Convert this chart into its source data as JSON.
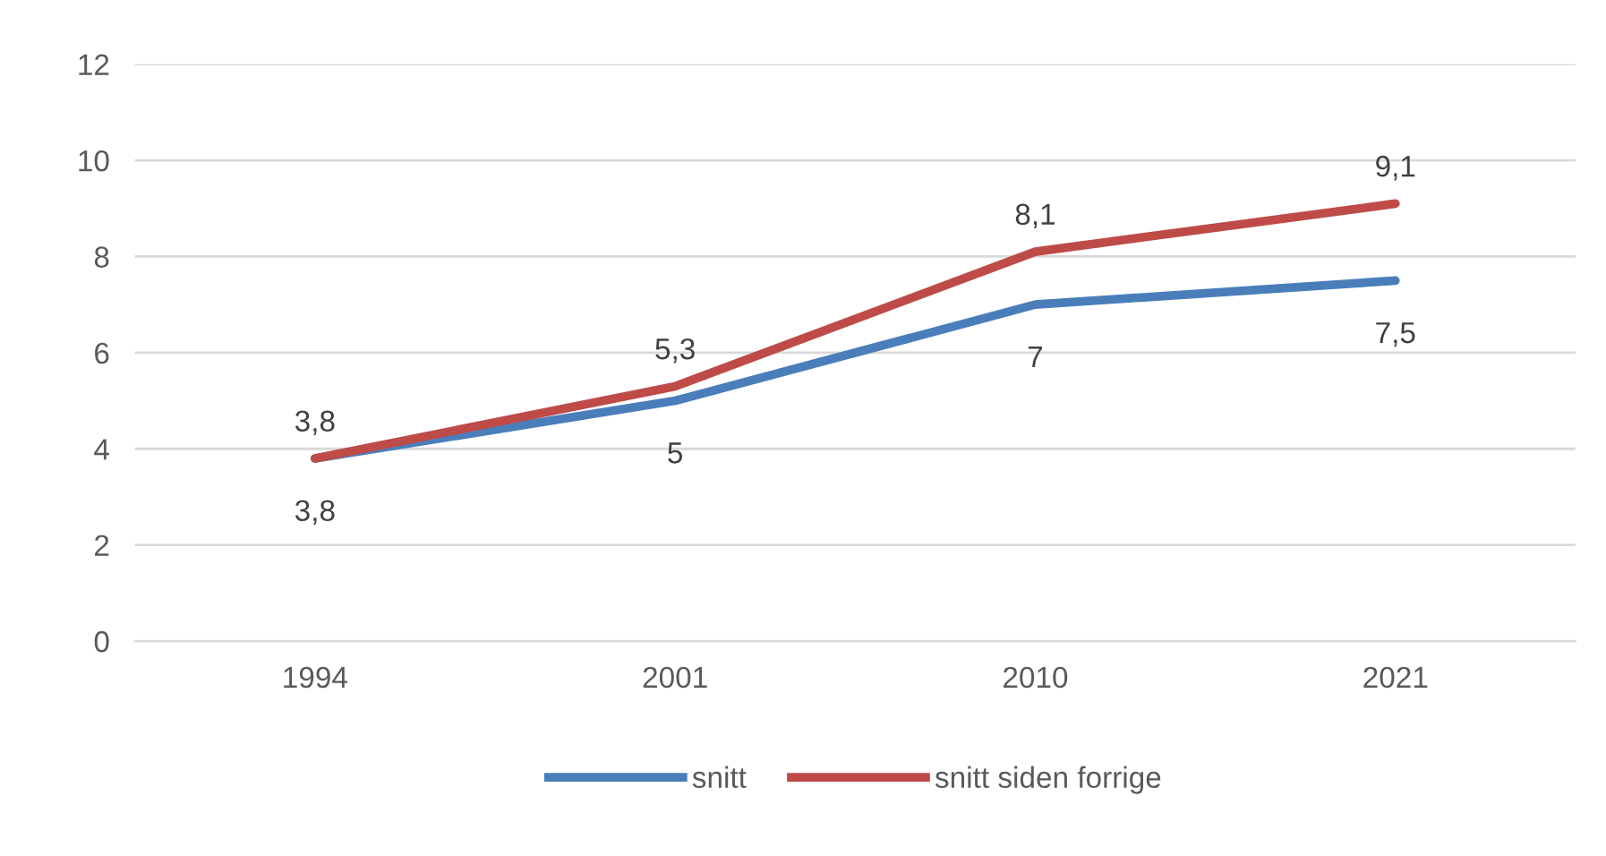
{
  "chart_data": {
    "type": "line",
    "categories": [
      "1994",
      "2001",
      "2010",
      "2021"
    ],
    "series": [
      {
        "name": "snitt",
        "color": "#4a7ebb",
        "values": [
          3.8,
          5,
          7,
          7.5
        ],
        "value_labels": [
          "3,8",
          "5",
          "7",
          "7,5"
        ]
      },
      {
        "name": "snitt siden forrige",
        "color": "#be4b48",
        "values": [
          3.8,
          5.3,
          8.1,
          9.1
        ],
        "value_labels": [
          "3,8",
          "5,3",
          "8,1",
          "9,1"
        ]
      }
    ],
    "ylim": [
      0,
      12
    ],
    "yticks": [
      0,
      2,
      4,
      6,
      8,
      10,
      12
    ],
    "grid": "y",
    "legend": "bottom",
    "marker": "none",
    "line_style": "solid"
  }
}
